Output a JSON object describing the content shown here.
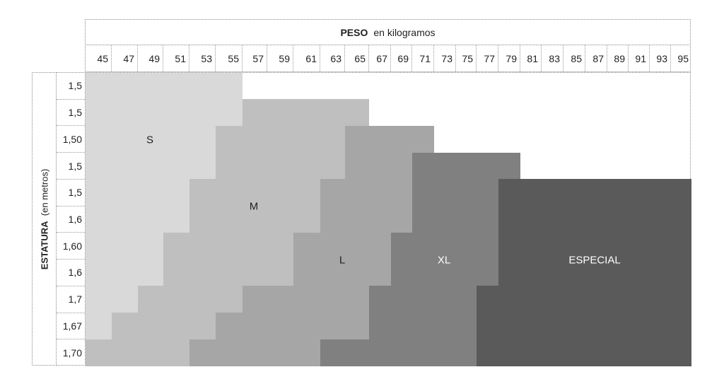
{
  "header": {
    "title_bold": "PESO",
    "title_rest": "en kilogramos"
  },
  "side": {
    "label_bold": "ESTATURA",
    "label_rest": "(en metros)"
  },
  "weights": [
    "45",
    "47",
    "49",
    "51",
    "53",
    "55",
    "57",
    "59",
    "61",
    "63",
    "65",
    "67",
    "69",
    "71",
    "73",
    "75",
    "77",
    "79",
    "81",
    "83",
    "85",
    "87",
    "89",
    "91",
    "93",
    "95"
  ],
  "heights": [
    "1,5",
    "1,5",
    "1,50",
    "1,5",
    "1,5",
    "1,6",
    "1,60",
    "1,6",
    "1,7",
    "1,67",
    "1,70"
  ],
  "sizes": {
    "S": {
      "label": "S",
      "color": "#d9d9d9",
      "text_color": "#222222"
    },
    "M": {
      "label": "M",
      "color": "#bfbfbf",
      "text_color": "#222222"
    },
    "L": {
      "label": "L",
      "color": "#a6a6a6",
      "text_color": "#222222"
    },
    "XL": {
      "label": "XL",
      "color": "#808080",
      "text_color": "#ffffff"
    },
    "ESPECIAL": {
      "label": "ESPECIAL",
      "color": "#5a5a5a",
      "text_color": "#ffffff"
    }
  },
  "rows": [
    [
      {
        "size": "S",
        "from": "45",
        "to": "55"
      }
    ],
    [
      {
        "size": "S",
        "from": "45",
        "to": "55"
      },
      {
        "size": "M",
        "from": "57",
        "to": "65"
      }
    ],
    [
      {
        "size": "S",
        "from": "45",
        "to": "53"
      },
      {
        "size": "M",
        "from": "55",
        "to": "63"
      },
      {
        "size": "L",
        "from": "65",
        "to": "71"
      }
    ],
    [
      {
        "size": "S",
        "from": "45",
        "to": "53"
      },
      {
        "size": "M",
        "from": "55",
        "to": "63"
      },
      {
        "size": "L",
        "from": "65",
        "to": "69"
      },
      {
        "size": "XL",
        "from": "71",
        "to": "79"
      }
    ],
    [
      {
        "size": "S",
        "from": "45",
        "to": "51"
      },
      {
        "size": "M",
        "from": "53",
        "to": "61"
      },
      {
        "size": "L",
        "from": "63",
        "to": "69"
      },
      {
        "size": "XL",
        "from": "71",
        "to": "77"
      },
      {
        "size": "ESPECIAL",
        "from": "79",
        "to": "95"
      }
    ],
    [
      {
        "size": "S",
        "from": "45",
        "to": "51"
      },
      {
        "size": "M",
        "from": "53",
        "to": "61"
      },
      {
        "size": "L",
        "from": "63",
        "to": "69"
      },
      {
        "size": "XL",
        "from": "71",
        "to": "77"
      },
      {
        "size": "ESPECIAL",
        "from": "79",
        "to": "95"
      }
    ],
    [
      {
        "size": "S",
        "from": "45",
        "to": "49"
      },
      {
        "size": "M",
        "from": "51",
        "to": "59"
      },
      {
        "size": "L",
        "from": "61",
        "to": "67"
      },
      {
        "size": "XL",
        "from": "69",
        "to": "77"
      },
      {
        "size": "ESPECIAL",
        "from": "79",
        "to": "95"
      }
    ],
    [
      {
        "size": "S",
        "from": "45",
        "to": "49"
      },
      {
        "size": "M",
        "from": "51",
        "to": "59"
      },
      {
        "size": "L",
        "from": "61",
        "to": "67"
      },
      {
        "size": "XL",
        "from": "69",
        "to": "77"
      },
      {
        "size": "ESPECIAL",
        "from": "79",
        "to": "95"
      }
    ],
    [
      {
        "size": "S",
        "from": "45",
        "to": "47"
      },
      {
        "size": "M",
        "from": "49",
        "to": "55"
      },
      {
        "size": "L",
        "from": "57",
        "to": "65"
      },
      {
        "size": "XL",
        "from": "67",
        "to": "75"
      },
      {
        "size": "ESPECIAL",
        "from": "77",
        "to": "95"
      }
    ],
    [
      {
        "size": "S",
        "from": "45",
        "to": "45"
      },
      {
        "size": "M",
        "from": "47",
        "to": "53"
      },
      {
        "size": "L",
        "from": "55",
        "to": "65"
      },
      {
        "size": "XL",
        "from": "67",
        "to": "75"
      },
      {
        "size": "ESPECIAL",
        "from": "77",
        "to": "95"
      }
    ],
    [
      {
        "size": "M",
        "from": "45",
        "to": "51"
      },
      {
        "size": "L",
        "from": "53",
        "to": "61"
      },
      {
        "size": "XL",
        "from": "63",
        "to": "75"
      },
      {
        "size": "ESPECIAL",
        "from": "77",
        "to": "95"
      }
    ]
  ]
}
